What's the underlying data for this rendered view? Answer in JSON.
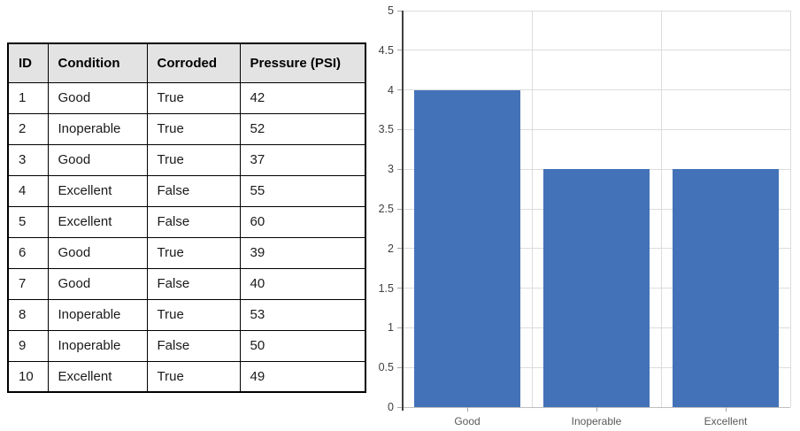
{
  "table": {
    "columns": [
      "ID",
      "Condition",
      "Corroded",
      "Pressure (PSI)"
    ],
    "rows": [
      [
        "1",
        "Good",
        "True",
        "42"
      ],
      [
        "2",
        "Inoperable",
        "True",
        "52"
      ],
      [
        "3",
        "Good",
        "True",
        "37"
      ],
      [
        "4",
        "Excellent",
        "False",
        "55"
      ],
      [
        "5",
        "Excellent",
        "False",
        "60"
      ],
      [
        "6",
        "Good",
        "True",
        "39"
      ],
      [
        "7",
        "Good",
        "False",
        "40"
      ],
      [
        "8",
        "Inoperable",
        "True",
        "53"
      ],
      [
        "9",
        "Inoperable",
        "False",
        "50"
      ],
      [
        "10",
        "Excellent",
        "True",
        "49"
      ]
    ]
  },
  "chart_data": {
    "type": "bar",
    "categories": [
      "Good",
      "Inoperable",
      "Excellent"
    ],
    "values": [
      4,
      3,
      3
    ],
    "title": "",
    "xlabel": "",
    "ylabel": "",
    "ylim": [
      0,
      5
    ],
    "ytick_step": 0.5,
    "ytick_labels": [
      "0",
      "0.5",
      "1",
      "1.5",
      "2",
      "2.5",
      "3",
      "3.5",
      "4",
      "4.5",
      "5"
    ],
    "grid": true,
    "legend": false,
    "bar_width_ratio": 0.82,
    "bar_color": "#4372B8",
    "gridline_color": "#DCDCDC",
    "baseline_color": "#BFBFBF",
    "axis_line_color": "#404040",
    "tick_color": "#A6A6A6",
    "ytick_label_color": "#404040",
    "xtick_label_color": "#595959"
  },
  "colors": {
    "page_bg": "#FFFFFF",
    "table_header_bg": "#E3E3E3",
    "table_border": "#000000"
  }
}
